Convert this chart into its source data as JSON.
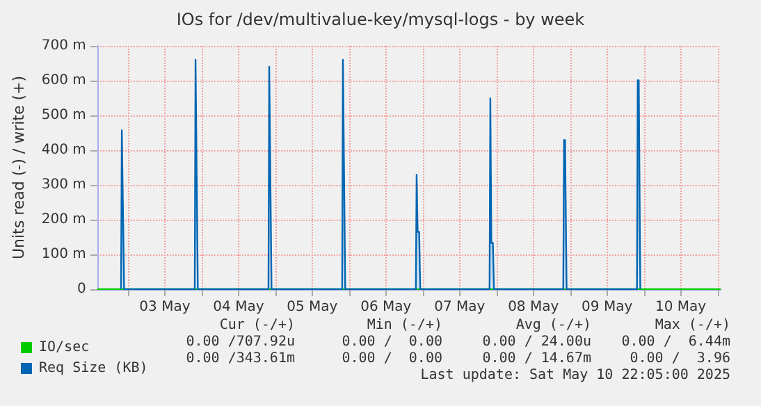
{
  "chart_data": {
    "type": "area",
    "title": "IOs for /dev/multivalue-key/mysql-logs - by week",
    "ylabel": "Units read (-) / write (+)",
    "xlim": [
      "2025-05-02T14:00",
      "2025-05-11T01:00"
    ],
    "xticks": [
      {
        "value": "2025-05-03T00:00",
        "label": null
      },
      {
        "value": "2025-05-03T12:00",
        "label": "03 May"
      },
      {
        "value": "2025-05-04T00:00",
        "label": null
      },
      {
        "value": "2025-05-04T12:00",
        "label": "04 May"
      },
      {
        "value": "2025-05-05T00:00",
        "label": null
      },
      {
        "value": "2025-05-05T12:00",
        "label": "05 May"
      },
      {
        "value": "2025-05-06T00:00",
        "label": null
      },
      {
        "value": "2025-05-06T12:00",
        "label": "06 May"
      },
      {
        "value": "2025-05-07T00:00",
        "label": null
      },
      {
        "value": "2025-05-07T12:00",
        "label": "07 May"
      },
      {
        "value": "2025-05-08T00:00",
        "label": null
      },
      {
        "value": "2025-05-08T12:00",
        "label": "08 May"
      },
      {
        "value": "2025-05-09T00:00",
        "label": null
      },
      {
        "value": "2025-05-09T12:00",
        "label": "09 May"
      },
      {
        "value": "2025-05-10T00:00",
        "label": null
      },
      {
        "value": "2025-05-10T12:00",
        "label": "10 May"
      },
      {
        "value": "2025-05-11T00:00",
        "label": null
      }
    ],
    "ylim": [
      0,
      700
    ],
    "yticks": [
      0,
      {
        "value": 100,
        "label": "100 m"
      },
      {
        "value": 200,
        "label": "200 m"
      },
      {
        "value": 300,
        "label": "300 m"
      },
      {
        "value": 400,
        "label": "400 m"
      },
      {
        "value": 500,
        "label": "500 m"
      },
      {
        "value": 600,
        "label": "600 m"
      },
      {
        "value": 700,
        "label": "700 m"
      }
    ],
    "grid": true,
    "legend": "bottom left",
    "marker": "none",
    "line_style": "solid",
    "series": [
      {
        "name": "IO/sec",
        "color": "#00cc00",
        "type": "line",
        "x": [
          "2025-05-02T14:00",
          "2025-05-11T01:00"
        ],
        "values": [
          0,
          0
        ]
      },
      {
        "name": "Req Size (KB)",
        "color": "#0066b3",
        "x": [
          "2025-05-02T21:45",
          "2025-05-02T22:00",
          "2025-05-02T22:45",
          "2025-05-03T21:45",
          "2025-05-03T22:00",
          "2025-05-03T22:45",
          "2025-05-04T21:45",
          "2025-05-04T22:00",
          "2025-05-04T22:45",
          "2025-05-05T21:45",
          "2025-05-05T22:00",
          "2025-05-05T22:45",
          "2025-05-06T21:45",
          "2025-05-06T22:00",
          "2025-05-06T22:20",
          "2025-05-06T22:50",
          "2025-05-06T23:10",
          "2025-05-07T21:45",
          "2025-05-07T22:00",
          "2025-05-07T22:20",
          "2025-05-07T22:50",
          "2025-05-07T23:10",
          "2025-05-08T21:45",
          "2025-05-08T22:00",
          "2025-05-08T22:20",
          "2025-05-08T22:50",
          "2025-05-09T21:45",
          "2025-05-09T22:00",
          "2025-05-09T22:20",
          "2025-05-09T22:50"
        ],
        "values": [
          0,
          457,
          0,
          0,
          660,
          0,
          0,
          640,
          0,
          0,
          660,
          0,
          0,
          329,
          165,
          165,
          0,
          0,
          549,
          133,
          133,
          0,
          0,
          429,
          429,
          0,
          0,
          601,
          601,
          0
        ]
      }
    ],
    "annotations": [
      "Cur (-/+)",
      "Min (-/+)",
      "Avg (-/+)",
      "Max (-/+)",
      "0.00 /707.92u",
      "0.00 /  0.00",
      "0.00 / 24.00u",
      "0.00 /  6.44m",
      "0.00 /343.61m",
      "0.00 /  0.00",
      "0.00 / 14.67m",
      "0.00 /  3.96",
      "Last update: Sat May 10 22:05:00 2025"
    ]
  }
}
